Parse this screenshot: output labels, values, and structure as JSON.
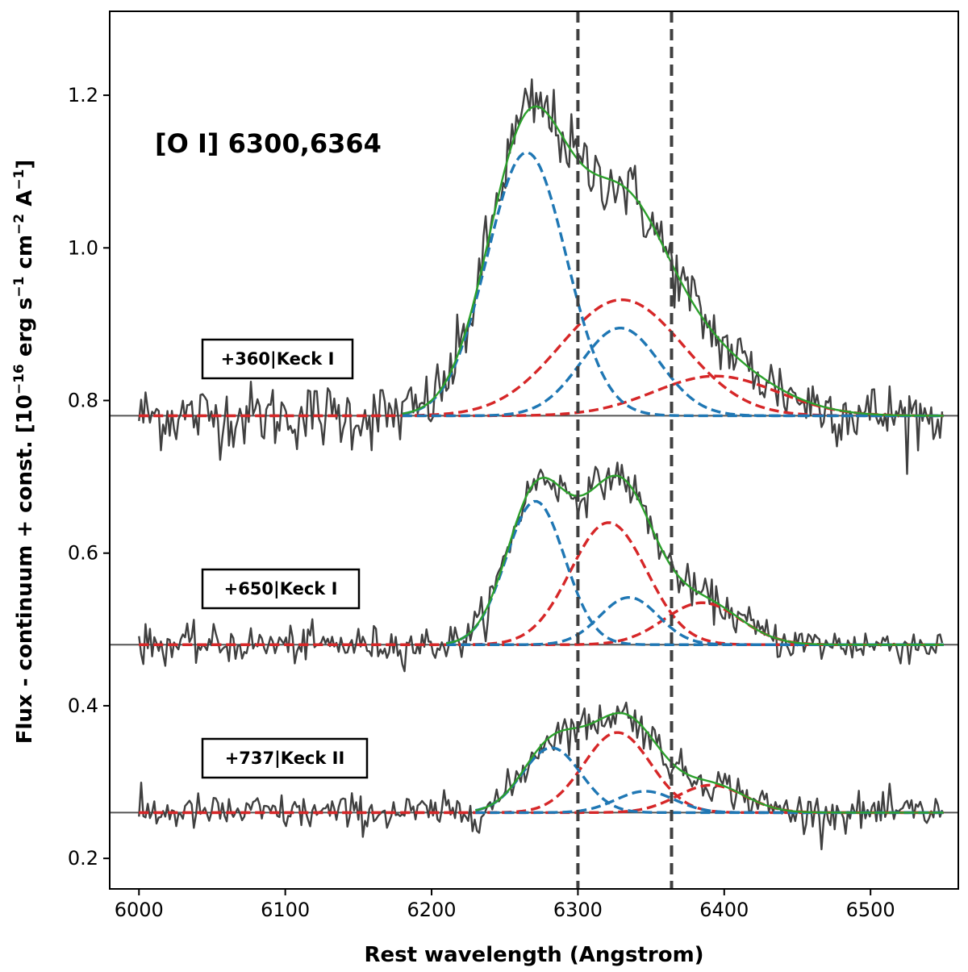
{
  "chart_data": {
    "type": "line",
    "title": "[O I] 6300,6364",
    "xlabel": "Rest wavelength (Angstrom)",
    "ylabel_main": "Flux - continuum + const. [10",
    "ylabel_exp1": "−16",
    "ylabel_mid1": " erg s",
    "ylabel_exp2": "−1",
    "ylabel_mid2": " cm",
    "ylabel_exp3": "−2",
    "ylabel_mid3": " A",
    "ylabel_exp4": "−1",
    "ylabel_end": "]",
    "xlim": [
      5980,
      6560
    ],
    "ylim": [
      0.16,
      1.31
    ],
    "xticks": [
      6000,
      6100,
      6200,
      6300,
      6400,
      6500
    ],
    "xtick_labels": [
      "6000",
      "6100",
      "6200",
      "6300",
      "6400",
      "6500"
    ],
    "yticks": [
      0.2,
      0.4,
      0.6,
      0.8,
      1.0,
      1.2
    ],
    "ytick_labels": [
      "0.2",
      "0.4",
      "0.6",
      "0.8",
      "1.0",
      "1.2"
    ],
    "reference_lines_x": [
      6300,
      6364
    ],
    "colors": {
      "observed": "#404040",
      "total_fit": "#2ca02c",
      "blue_component": "#1f77b4",
      "red_component": "#d62728",
      "baseline": "#555555",
      "reference": "#404040"
    },
    "x_range_data": [
      6000,
      6550
    ],
    "spectra": [
      {
        "label": "+360|Keck I",
        "baseline": 0.78,
        "noise": 0.022,
        "fit_range": [
          6180,
          6550
        ],
        "blue_components": [
          {
            "amp": 0.345,
            "center": 6265,
            "sigma": 27
          },
          {
            "amp": 0.115,
            "center": 6329,
            "sigma": 27
          }
        ],
        "red_components": [
          {
            "amp": 0.152,
            "center": 6330,
            "sigma": 42
          },
          {
            "amp": 0.052,
            "center": 6394,
            "sigma": 42
          }
        ]
      },
      {
        "label": "+650|Keck I",
        "baseline": 0.48,
        "noise": 0.012,
        "fit_range": [
          6210,
          6550
        ],
        "blue_components": [
          {
            "amp": 0.188,
            "center": 6271,
            "sigma": 20
          },
          {
            "amp": 0.062,
            "center": 6335,
            "sigma": 20
          }
        ],
        "red_components": [
          {
            "amp": 0.16,
            "center": 6321,
            "sigma": 26
          },
          {
            "amp": 0.055,
            "center": 6385,
            "sigma": 26
          }
        ]
      },
      {
        "label": "+737|Keck II",
        "baseline": 0.26,
        "noise": 0.012,
        "fit_range": [
          6230,
          6550
        ],
        "blue_components": [
          {
            "amp": 0.085,
            "center": 6282,
            "sigma": 20
          },
          {
            "amp": 0.028,
            "center": 6346,
            "sigma": 20
          }
        ],
        "red_components": [
          {
            "amp": 0.105,
            "center": 6327,
            "sigma": 23
          },
          {
            "amp": 0.036,
            "center": 6391,
            "sigma": 23
          }
        ]
      }
    ]
  }
}
